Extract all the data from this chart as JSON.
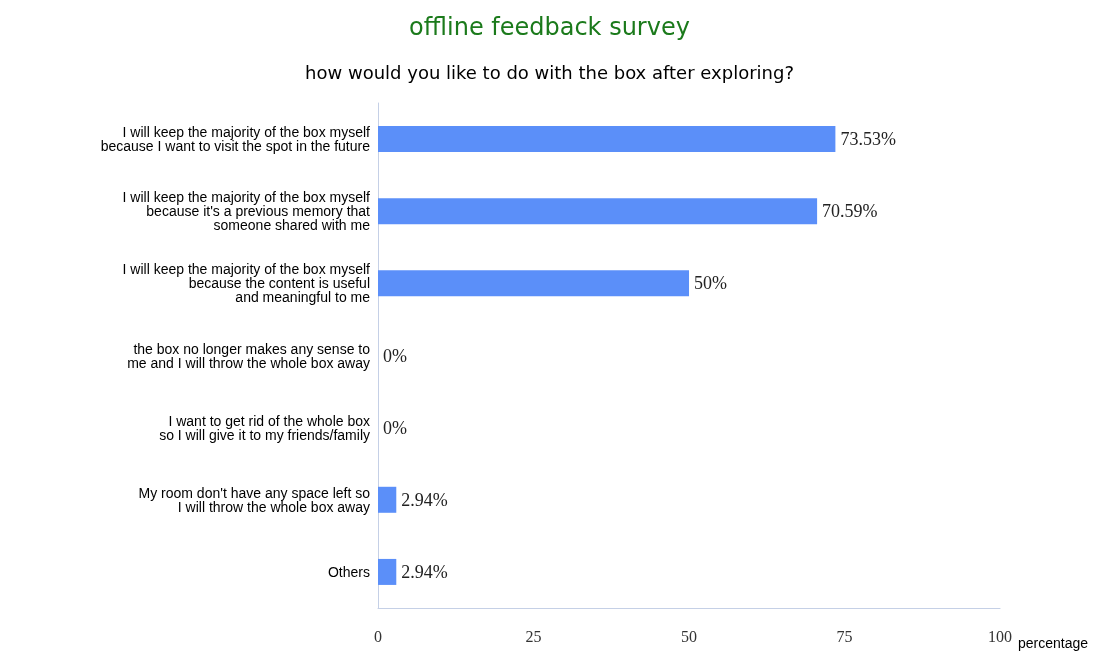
{
  "chart_data": {
    "type": "bar",
    "orientation": "horizontal",
    "title": "offline feedback survey",
    "subtitle": "how would you like to do with the box after exploring?",
    "xlabel": "percentage",
    "categories": [
      "I will keep the majority of the box myself\nbecause I want to visit the spot in the future",
      "I will keep the majority of the box myself\n because it's a previous memory that\nsomeone shared with me",
      "I will keep the majority of the box myself\nbecause the content is useful\nand meaningful to me",
      "the box no longer makes any sense to\nme and I will throw the whole box away",
      "I want to get rid of the whole box\nso I will give it to my friends/family",
      "My room don't have any space left so\nI will throw the whole box away",
      "Others"
    ],
    "values": [
      73.53,
      70.59,
      50,
      0,
      0,
      2.94,
      2.94
    ],
    "value_labels": [
      "73.53%",
      "70.59%",
      "50%",
      "0%",
      "0%",
      "2.94%",
      "2.94%"
    ],
    "color": "#5b8ff9",
    "xlim": [
      0,
      100
    ],
    "xticks": [
      0,
      25,
      50,
      75,
      100
    ],
    "grid": false
  }
}
